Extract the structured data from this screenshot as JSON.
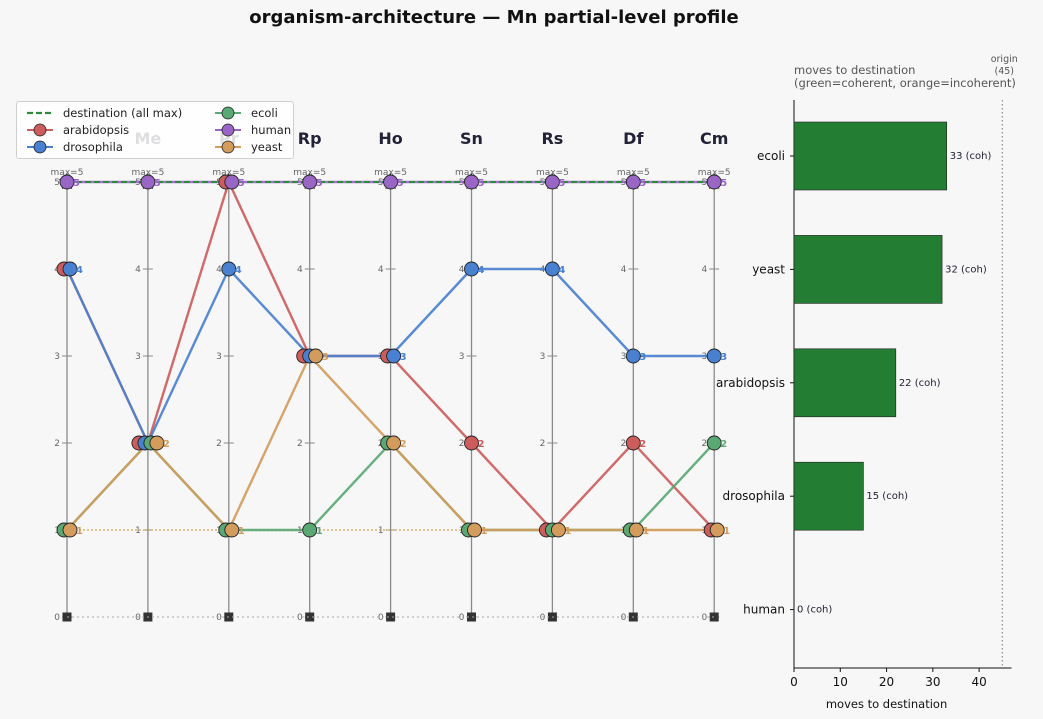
{
  "title": "organism-architecture — Mn partial-level profile",
  "colors": {
    "arabidopsis": "#cd5c5c",
    "drosophila": "#4a80d0",
    "ecoli": "#5aa874",
    "human": "#9966c6",
    "yeast": "#d39c5c",
    "destination": "#2e8b3c",
    "bar": "#237d32"
  },
  "legend": {
    "destination": "destination (all max)",
    "arabidopsis": "arabidopsis",
    "drosophila": "drosophila",
    "ecoli": "ecoli",
    "human": "human",
    "yeast": "yeast"
  },
  "chart_data": [
    {
      "type": "line",
      "subtype": "parallel-coordinates",
      "axes": [
        "Me",
        "Pr",
        "Rp",
        "Ho",
        "Sn",
        "Rs",
        "Df",
        "Cm"
      ],
      "first_axis_hidden_label": true,
      "axis_max_label": "max=5",
      "ylim": [
        0,
        5
      ],
      "yticks": [
        0,
        1,
        2,
        3,
        4,
        5
      ],
      "series": [
        {
          "name": "arabidopsis",
          "values": [
            4,
            2,
            5,
            3,
            3,
            2,
            1,
            2,
            1
          ]
        },
        {
          "name": "drosophila",
          "values": [
            4,
            2,
            4,
            3,
            3,
            4,
            4,
            3,
            3
          ]
        },
        {
          "name": "ecoli",
          "values": [
            1,
            2,
            1,
            1,
            2,
            1,
            1,
            1,
            2
          ]
        },
        {
          "name": "human",
          "values": [
            5,
            5,
            5,
            5,
            5,
            5,
            5,
            5,
            5
          ]
        },
        {
          "name": "yeast",
          "values": [
            1,
            2,
            1,
            3,
            2,
            1,
            1,
            1,
            1
          ]
        }
      ],
      "destination": {
        "name": "destination (all max)",
        "value": 5
      }
    },
    {
      "type": "bar",
      "orientation": "horizontal",
      "title_lines": [
        "moves to destination",
        "(green=coherent, orange=incoherent)"
      ],
      "categories": [
        "ecoli",
        "yeast",
        "arabidopsis",
        "drosophila",
        "human"
      ],
      "values": [
        33,
        32,
        22,
        15,
        0
      ],
      "annotations": [
        "(coh)",
        "(coh)",
        "(coh)",
        "(coh)",
        "(coh)"
      ],
      "xlabel": "moves to destination",
      "xlim": [
        0,
        47
      ],
      "xticks": [
        0,
        10,
        20,
        30,
        40
      ],
      "reference_line": {
        "value": 45,
        "label_lines": [
          "origin",
          "(45)"
        ]
      }
    }
  ]
}
